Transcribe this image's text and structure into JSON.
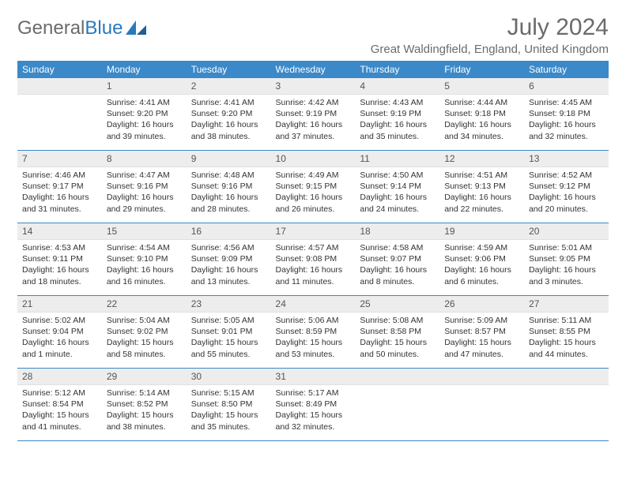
{
  "logo": {
    "text1": "General",
    "text2": "Blue"
  },
  "title": "July 2024",
  "location": "Great Waldingfield, England, United Kingdom",
  "header_bg": "#3b89c9",
  "daynum_bg": "#ededed",
  "text_color": "#333333",
  "muted_color": "#6b6b6b",
  "day_headers": [
    "Sunday",
    "Monday",
    "Tuesday",
    "Wednesday",
    "Thursday",
    "Friday",
    "Saturday"
  ],
  "weeks": [
    [
      null,
      {
        "n": "1",
        "sr": "Sunrise: 4:41 AM",
        "ss": "Sunset: 9:20 PM",
        "d1": "Daylight: 16 hours",
        "d2": "and 39 minutes."
      },
      {
        "n": "2",
        "sr": "Sunrise: 4:41 AM",
        "ss": "Sunset: 9:20 PM",
        "d1": "Daylight: 16 hours",
        "d2": "and 38 minutes."
      },
      {
        "n": "3",
        "sr": "Sunrise: 4:42 AM",
        "ss": "Sunset: 9:19 PM",
        "d1": "Daylight: 16 hours",
        "d2": "and 37 minutes."
      },
      {
        "n": "4",
        "sr": "Sunrise: 4:43 AM",
        "ss": "Sunset: 9:19 PM",
        "d1": "Daylight: 16 hours",
        "d2": "and 35 minutes."
      },
      {
        "n": "5",
        "sr": "Sunrise: 4:44 AM",
        "ss": "Sunset: 9:18 PM",
        "d1": "Daylight: 16 hours",
        "d2": "and 34 minutes."
      },
      {
        "n": "6",
        "sr": "Sunrise: 4:45 AM",
        "ss": "Sunset: 9:18 PM",
        "d1": "Daylight: 16 hours",
        "d2": "and 32 minutes."
      }
    ],
    [
      {
        "n": "7",
        "sr": "Sunrise: 4:46 AM",
        "ss": "Sunset: 9:17 PM",
        "d1": "Daylight: 16 hours",
        "d2": "and 31 minutes."
      },
      {
        "n": "8",
        "sr": "Sunrise: 4:47 AM",
        "ss": "Sunset: 9:16 PM",
        "d1": "Daylight: 16 hours",
        "d2": "and 29 minutes."
      },
      {
        "n": "9",
        "sr": "Sunrise: 4:48 AM",
        "ss": "Sunset: 9:16 PM",
        "d1": "Daylight: 16 hours",
        "d2": "and 28 minutes."
      },
      {
        "n": "10",
        "sr": "Sunrise: 4:49 AM",
        "ss": "Sunset: 9:15 PM",
        "d1": "Daylight: 16 hours",
        "d2": "and 26 minutes."
      },
      {
        "n": "11",
        "sr": "Sunrise: 4:50 AM",
        "ss": "Sunset: 9:14 PM",
        "d1": "Daylight: 16 hours",
        "d2": "and 24 minutes."
      },
      {
        "n": "12",
        "sr": "Sunrise: 4:51 AM",
        "ss": "Sunset: 9:13 PM",
        "d1": "Daylight: 16 hours",
        "d2": "and 22 minutes."
      },
      {
        "n": "13",
        "sr": "Sunrise: 4:52 AM",
        "ss": "Sunset: 9:12 PM",
        "d1": "Daylight: 16 hours",
        "d2": "and 20 minutes."
      }
    ],
    [
      {
        "n": "14",
        "sr": "Sunrise: 4:53 AM",
        "ss": "Sunset: 9:11 PM",
        "d1": "Daylight: 16 hours",
        "d2": "and 18 minutes."
      },
      {
        "n": "15",
        "sr": "Sunrise: 4:54 AM",
        "ss": "Sunset: 9:10 PM",
        "d1": "Daylight: 16 hours",
        "d2": "and 16 minutes."
      },
      {
        "n": "16",
        "sr": "Sunrise: 4:56 AM",
        "ss": "Sunset: 9:09 PM",
        "d1": "Daylight: 16 hours",
        "d2": "and 13 minutes."
      },
      {
        "n": "17",
        "sr": "Sunrise: 4:57 AM",
        "ss": "Sunset: 9:08 PM",
        "d1": "Daylight: 16 hours",
        "d2": "and 11 minutes."
      },
      {
        "n": "18",
        "sr": "Sunrise: 4:58 AM",
        "ss": "Sunset: 9:07 PM",
        "d1": "Daylight: 16 hours",
        "d2": "and 8 minutes."
      },
      {
        "n": "19",
        "sr": "Sunrise: 4:59 AM",
        "ss": "Sunset: 9:06 PM",
        "d1": "Daylight: 16 hours",
        "d2": "and 6 minutes."
      },
      {
        "n": "20",
        "sr": "Sunrise: 5:01 AM",
        "ss": "Sunset: 9:05 PM",
        "d1": "Daylight: 16 hours",
        "d2": "and 3 minutes."
      }
    ],
    [
      {
        "n": "21",
        "sr": "Sunrise: 5:02 AM",
        "ss": "Sunset: 9:04 PM",
        "d1": "Daylight: 16 hours",
        "d2": "and 1 minute."
      },
      {
        "n": "22",
        "sr": "Sunrise: 5:04 AM",
        "ss": "Sunset: 9:02 PM",
        "d1": "Daylight: 15 hours",
        "d2": "and 58 minutes."
      },
      {
        "n": "23",
        "sr": "Sunrise: 5:05 AM",
        "ss": "Sunset: 9:01 PM",
        "d1": "Daylight: 15 hours",
        "d2": "and 55 minutes."
      },
      {
        "n": "24",
        "sr": "Sunrise: 5:06 AM",
        "ss": "Sunset: 8:59 PM",
        "d1": "Daylight: 15 hours",
        "d2": "and 53 minutes."
      },
      {
        "n": "25",
        "sr": "Sunrise: 5:08 AM",
        "ss": "Sunset: 8:58 PM",
        "d1": "Daylight: 15 hours",
        "d2": "and 50 minutes."
      },
      {
        "n": "26",
        "sr": "Sunrise: 5:09 AM",
        "ss": "Sunset: 8:57 PM",
        "d1": "Daylight: 15 hours",
        "d2": "and 47 minutes."
      },
      {
        "n": "27",
        "sr": "Sunrise: 5:11 AM",
        "ss": "Sunset: 8:55 PM",
        "d1": "Daylight: 15 hours",
        "d2": "and 44 minutes."
      }
    ],
    [
      {
        "n": "28",
        "sr": "Sunrise: 5:12 AM",
        "ss": "Sunset: 8:54 PM",
        "d1": "Daylight: 15 hours",
        "d2": "and 41 minutes."
      },
      {
        "n": "29",
        "sr": "Sunrise: 5:14 AM",
        "ss": "Sunset: 8:52 PM",
        "d1": "Daylight: 15 hours",
        "d2": "and 38 minutes."
      },
      {
        "n": "30",
        "sr": "Sunrise: 5:15 AM",
        "ss": "Sunset: 8:50 PM",
        "d1": "Daylight: 15 hours",
        "d2": "and 35 minutes."
      },
      {
        "n": "31",
        "sr": "Sunrise: 5:17 AM",
        "ss": "Sunset: 8:49 PM",
        "d1": "Daylight: 15 hours",
        "d2": "and 32 minutes."
      },
      null,
      null,
      null
    ]
  ]
}
